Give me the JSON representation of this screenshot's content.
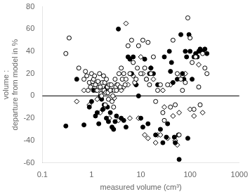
{
  "chart_data": {
    "type": "scatter",
    "xlabel": "measured volume (cm³)",
    "ylabel": [
      "volume :",
      "departure from model in %"
    ],
    "log": "x",
    "grid": false,
    "xlim": [
      0.1,
      1000
    ],
    "xticks": [
      0.1,
      1,
      10,
      100,
      1000
    ],
    "ylim": [
      -60,
      80
    ],
    "yticks": [
      -60,
      -40,
      -20,
      0,
      20,
      40,
      60,
      80
    ],
    "reference_line": {
      "y": 0,
      "color": "black"
    },
    "series": [
      {
        "marker": "circle_open",
        "color": "black",
        "x": [
          0.3,
          0.35,
          0.55,
          0.7,
          0.75,
          0.8,
          0.85,
          0.9,
          0.95,
          1.0,
          1.05,
          1.1,
          1.15,
          1.2,
          1.25,
          1.3,
          1.35,
          1.4,
          1.45,
          1.5,
          1.55,
          1.6,
          1.65,
          1.7,
          1.75,
          1.8,
          1.85,
          1.9,
          1.95,
          2.0,
          2.05,
          2.1,
          2.15,
          2.2,
          2.3,
          2.4,
          2.5,
          2.6,
          2.7,
          2.8,
          2.9,
          3.0,
          3.1,
          3.2,
          3.4,
          3.6,
          3.8,
          4.0,
          4.2,
          4.5,
          4.8,
          5.0,
          5.5,
          6.0,
          6.5,
          7.0,
          7.5,
          8.0,
          8.5,
          9.0,
          10.0,
          11.0,
          12.0,
          13.0,
          14.0,
          15.0,
          16.0,
          18.0,
          20.0,
          22.0,
          25.0,
          28.0,
          30.0,
          35.0,
          40.0,
          45.0,
          50.0,
          55.0,
          60.0,
          65.0,
          70.0,
          80.0,
          90.0,
          100.0,
          110.0,
          120.0,
          130.0,
          150.0,
          160.0,
          180.0,
          200.0,
          220.0
        ],
        "values": [
          38.0,
          52.0,
          25.0,
          15.0,
          22.0,
          18.0,
          5.0,
          12.0,
          8.0,
          20.0,
          13.0,
          15.0,
          18.0,
          10.0,
          5.0,
          5.0,
          13.0,
          8.0,
          20.0,
          8.0,
          2.0,
          0.0,
          12.0,
          5.0,
          18.0,
          5.0,
          12.0,
          -8.0,
          3.0,
          15.0,
          8.0,
          8.0,
          3.0,
          -3.0,
          10.0,
          5.0,
          10.0,
          -5.0,
          0.0,
          -10.0,
          5.0,
          15.0,
          8.0,
          5.0,
          10.0,
          20.0,
          8.0,
          25.0,
          15.0,
          20.0,
          10.0,
          15.0,
          45.0,
          20.0,
          50.0,
          30.0,
          12.0,
          15.0,
          25.0,
          45.0,
          20.0,
          50.0,
          25.0,
          15.0,
          48.0,
          10.0,
          20.0,
          35.0,
          -5.0,
          5.0,
          10.0,
          -15.0,
          -22.0,
          10.0,
          -10.0,
          50.0,
          -8.0,
          20.0,
          -35.0,
          15.0,
          5.0,
          12.0,
          70.0,
          52.0,
          30.0,
          -12.0,
          35.0,
          8.0,
          -8.0,
          38.0,
          25.0,
          20.0
        ]
      },
      {
        "marker": "circle",
        "color": "black",
        "x": [
          0.3,
          0.5,
          0.7,
          0.9,
          1.0,
          1.1,
          1.2,
          1.3,
          1.4,
          1.5,
          1.6,
          1.7,
          1.8,
          1.9,
          2.0,
          2.1,
          2.2,
          2.4,
          2.6,
          2.8,
          3.0,
          3.2,
          3.5,
          4.0,
          4.5,
          5.0,
          5.5,
          6.0,
          6.5,
          7.0,
          8.0,
          9.0,
          10.0,
          11.0,
          12.0,
          13.0,
          14.0,
          15.0,
          16.0,
          18.0,
          20.0,
          22.0,
          25.0,
          28.0,
          30.0,
          33.0,
          35.0,
          38.0,
          40.0,
          42.0,
          45.0,
          48.0,
          50.0,
          55.0,
          58.0,
          60.0,
          65.0,
          70.0,
          75.0,
          80.0,
          85.0,
          90.0,
          95.0,
          100.0,
          110.0,
          120.0,
          130.0,
          140.0,
          150.0,
          160.0,
          180.0,
          200.0,
          220.0
        ],
        "values": [
          -27.0,
          15.0,
          -26.0,
          -10.0,
          -5.0,
          5.0,
          -18.0,
          -15.0,
          -25.0,
          0.0,
          -3.0,
          -12.0,
          -8.0,
          5.0,
          -20.0,
          -10.0,
          -23.0,
          -15.0,
          -28.0,
          -30.0,
          -23.0,
          -18.0,
          60.0,
          -20.0,
          -22.0,
          -28.0,
          35.0,
          33.0,
          20.0,
          35.0,
          10.0,
          0.0,
          -20.0,
          -28.0,
          33.0,
          15.0,
          -25.0,
          20.0,
          25.0,
          20.0,
          -35.0,
          10.0,
          -30.0,
          -42.0,
          35.0,
          -37.0,
          -25.0,
          40.0,
          22.0,
          30.0,
          12.0,
          -37.0,
          -42.0,
          15.0,
          -35.0,
          -57.0,
          55.0,
          20.0,
          15.0,
          40.0,
          35.0,
          -38.0,
          55.0,
          40.0,
          15.0,
          35.0,
          38.0,
          35.0,
          40.0,
          42.0,
          40.0,
          42.0,
          38.0
        ]
      },
      {
        "marker": "diamond_open",
        "color": "black",
        "x": [
          0.5,
          0.7,
          0.9,
          1.1,
          1.3,
          1.5,
          1.7,
          2.0,
          2.3,
          2.6,
          2.9,
          3.2,
          3.5,
          4.0,
          4.5,
          5.0,
          5.5,
          6.0,
          7.0,
          8.0,
          9.0,
          10.0,
          11.0,
          12.0,
          14.0,
          16.0,
          18.0,
          20.0,
          22.0,
          25.0,
          28.0,
          30.0,
          35.0,
          40.0,
          45.0,
          50.0,
          55.0,
          60.0,
          70.0,
          80.0,
          100.0,
          120.0,
          150.0,
          180.0
        ],
        "values": [
          -5.0,
          5.0,
          -8.0,
          10.0,
          -3.0,
          -15.0,
          -12.0,
          8.0,
          -20.0,
          5.0,
          -2.0,
          10.0,
          -22.0,
          5.0,
          8.0,
          65.0,
          10.0,
          -20.0,
          18.0,
          10.0,
          -20.0,
          35.0,
          20.0,
          -35.0,
          -38.0,
          25.0,
          15.0,
          -42.0,
          -35.0,
          -35.0,
          5.0,
          -10.0,
          -38.0,
          10.0,
          -18.0,
          -40.0,
          -44.0,
          -15.0,
          18.0,
          20.0,
          -12.0,
          -18.0,
          28.0,
          -15.0
        ]
      }
    ]
  }
}
